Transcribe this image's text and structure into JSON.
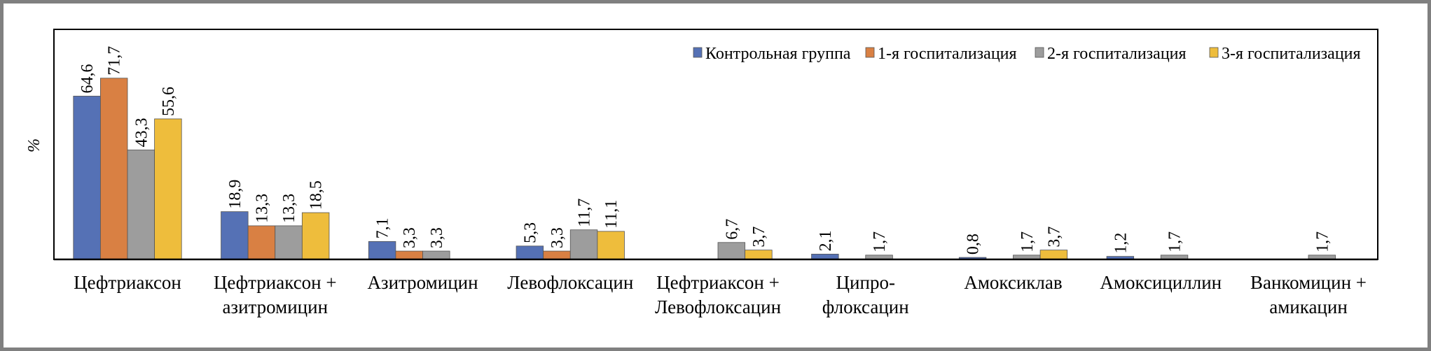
{
  "chart_data": {
    "type": "bar",
    "title": "",
    "xlabel": "",
    "ylabel": "%",
    "ylim": [
      0,
      91
    ],
    "grid": false,
    "legend_position": "top-right",
    "categories": [
      [
        "Цефтриаксон"
      ],
      [
        "Цефтриаксон +",
        "азитромицин"
      ],
      [
        "Азитромицин"
      ],
      [
        "Левофлоксацин"
      ],
      [
        "Цефтриаксон +",
        "Левофлоксацин"
      ],
      [
        "Ципро-",
        "флоксацин"
      ],
      [
        "Амоксиклав"
      ],
      [
        "Амоксициллин"
      ],
      [
        "Ванкомицин +",
        "амикацин"
      ]
    ],
    "series": [
      {
        "name": "Контрольная группа",
        "color": "#5571b5",
        "values": [
          64.6,
          18.9,
          7.1,
          5.3,
          null,
          2.1,
          0.8,
          1.2,
          null
        ],
        "labels": [
          "64,6",
          "18,9",
          "7,1",
          "5,3",
          null,
          "2,1",
          "0,8",
          "1,2",
          null
        ]
      },
      {
        "name": "1-я госпитализация",
        "color": "#d98043",
        "values": [
          71.7,
          13.3,
          3.3,
          3.3,
          null,
          null,
          null,
          null,
          null
        ],
        "labels": [
          "71,7",
          "13,3",
          "3,3",
          "3,3",
          null,
          null,
          null,
          null,
          null
        ]
      },
      {
        "name": "2-я госпитализация",
        "color": "#9d9d9d",
        "values": [
          43.3,
          13.3,
          3.3,
          11.7,
          6.7,
          1.7,
          1.7,
          1.7,
          1.7
        ],
        "labels": [
          "43,3",
          "13,3",
          "3,3",
          "11,7",
          "6,7",
          "1,7",
          "1,7",
          "1,7",
          "1,7"
        ]
      },
      {
        "name": "3-я госпитализация",
        "color": "#eebd3c",
        "values": [
          55.6,
          18.5,
          null,
          11.1,
          3.7,
          null,
          3.7,
          null,
          null
        ],
        "labels": [
          "55,6",
          "18,5",
          null,
          "11,1",
          "3,7",
          null,
          "3,7",
          null,
          null
        ]
      }
    ]
  }
}
